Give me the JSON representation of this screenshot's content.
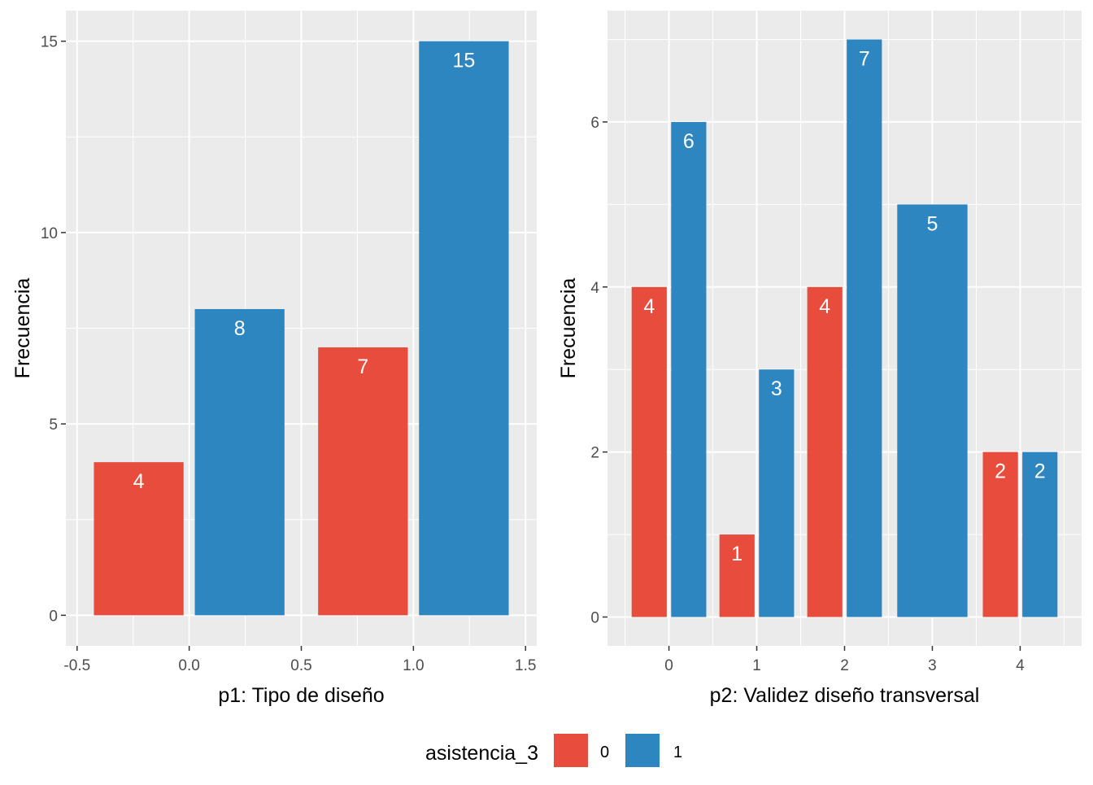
{
  "colors": {
    "panel_bg": "#ebebeb",
    "grid": "#ffffff",
    "tick": "#333333",
    "series_0": "#e74c3c",
    "series_1": "#2e86c1"
  },
  "chart_data": [
    {
      "type": "bar",
      "xlabel": "p1: Tipo de diseño",
      "ylabel": "Frecuencia",
      "xlim": [
        -0.55,
        1.55
      ],
      "ylim": [
        -0.8,
        15.8
      ],
      "x_ticks": [
        -0.5,
        0.0,
        0.5,
        1.0,
        1.5
      ],
      "x_tick_labels": [
        "-0.5",
        "0.0",
        "0.5",
        "1.0",
        "1.5"
      ],
      "y_ticks": [
        0,
        5,
        10,
        15
      ],
      "y_tick_labels": [
        "0",
        "5",
        "10",
        "15"
      ],
      "bar_width": 0.4,
      "bars": [
        {
          "x": -0.225,
          "value": 4,
          "series": "0",
          "label": "4"
        },
        {
          "x": 0.225,
          "value": 8,
          "series": "1",
          "label": "8"
        },
        {
          "x": 0.775,
          "value": 7,
          "series": "0",
          "label": "7"
        },
        {
          "x": 1.225,
          "value": 15,
          "series": "1",
          "label": "15"
        }
      ]
    },
    {
      "type": "bar",
      "xlabel": "p2: Validez diseño transversal",
      "ylabel": "Frecuencia",
      "xlim": [
        -0.7,
        4.7
      ],
      "ylim": [
        -0.35,
        7.35
      ],
      "x_ticks": [
        0,
        1,
        2,
        3,
        4
      ],
      "x_tick_labels": [
        "0",
        "1",
        "2",
        "3",
        "4"
      ],
      "y_ticks": [
        0,
        2,
        4,
        6
      ],
      "y_tick_labels": [
        "0",
        "2",
        "4",
        "6"
      ],
      "bar_width": 0.4,
      "bars": [
        {
          "x": -0.225,
          "value": 4,
          "series": "0",
          "label": "4"
        },
        {
          "x": 0.225,
          "value": 6,
          "series": "1",
          "label": "6"
        },
        {
          "x": 0.775,
          "value": 1,
          "series": "0",
          "label": "1"
        },
        {
          "x": 1.225,
          "value": 3,
          "series": "1",
          "label": "3"
        },
        {
          "x": 1.775,
          "value": 4,
          "series": "0",
          "label": "4"
        },
        {
          "x": 2.225,
          "value": 7,
          "series": "1",
          "label": "7"
        },
        {
          "x": 3.0,
          "value": 5,
          "series": "1",
          "label": "5",
          "width": 0.8
        },
        {
          "x": 3.775,
          "value": 2,
          "series": "0",
          "label": "2"
        },
        {
          "x": 4.225,
          "value": 2,
          "series": "1",
          "label": "2"
        }
      ]
    }
  ],
  "legend": {
    "title": "asistencia_3",
    "position": "bottom",
    "items": [
      {
        "label": "0",
        "color": "#e74c3c"
      },
      {
        "label": "1",
        "color": "#2e86c1"
      }
    ]
  }
}
